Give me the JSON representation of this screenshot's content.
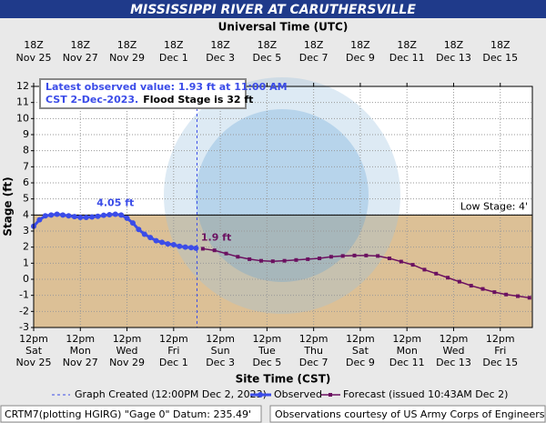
{
  "chart_data": {
    "type": "line",
    "title": "MISSISSIPPI RIVER AT CARUTHERSVILLE",
    "top_axis_label": "Universal Time (UTC)",
    "xlabel": "Site Time (CST)",
    "ylabel": "Stage (ft)",
    "xlim": [
      "Nov 25 12:00",
      "Dec 16 21:00"
    ],
    "ylim": [
      -3,
      12
    ],
    "yticks": [
      -3,
      -2,
      -1,
      0,
      1,
      2,
      3,
      4,
      5,
      6,
      7,
      8,
      9,
      10,
      11,
      12
    ],
    "xticks": [
      {
        "value": "Nov 25 12:00",
        "label": [
          "12pm",
          "Sat",
          "Nov 25"
        ]
      },
      {
        "value": "Nov 27 12:00",
        "label": [
          "12pm",
          "Mon",
          "Nov 27"
        ]
      },
      {
        "value": "Nov 29 12:00",
        "label": [
          "12pm",
          "Wed",
          "Nov 29"
        ]
      },
      {
        "value": "Dec 1 12:00",
        "label": [
          "12pm",
          "Fri",
          "Dec 1"
        ]
      },
      {
        "value": "Dec 3 12:00",
        "label": [
          "12pm",
          "Sun",
          "Dec 3"
        ]
      },
      {
        "value": "Dec 5 12:00",
        "label": [
          "12pm",
          "Tue",
          "Dec 5"
        ]
      },
      {
        "value": "Dec 7 12:00",
        "label": [
          "12pm",
          "Thu",
          "Dec 7"
        ]
      },
      {
        "value": "Dec 9 12:00",
        "label": [
          "12pm",
          "Sat",
          "Dec 9"
        ]
      },
      {
        "value": "Dec 11 12:00",
        "label": [
          "12pm",
          "Mon",
          "Dec 11"
        ]
      },
      {
        "value": "Dec 13 12:00",
        "label": [
          "12pm",
          "Wed",
          "Dec 13"
        ]
      },
      {
        "value": "Dec 15 12:00",
        "label": [
          "12pm",
          "Fri",
          "Dec 15"
        ]
      }
    ],
    "x2ticks": [
      {
        "value": "Nov 25 12:00",
        "label": [
          "18Z",
          "Nov 25"
        ]
      },
      {
        "value": "Nov 27 12:00",
        "label": [
          "18Z",
          "Nov 27"
        ]
      },
      {
        "value": "Nov 29 12:00",
        "label": [
          "18Z",
          "Nov 29"
        ]
      },
      {
        "value": "Dec 1 12:00",
        "label": [
          "18Z",
          "Dec 1"
        ]
      },
      {
        "value": "Dec 3 12:00",
        "label": [
          "18Z",
          "Dec 3"
        ]
      },
      {
        "value": "Dec 5 12:00",
        "label": [
          "18Z",
          "Dec 5"
        ]
      },
      {
        "value": "Dec 7 12:00",
        "label": [
          "18Z",
          "Dec 7"
        ]
      },
      {
        "value": "Dec 9 12:00",
        "label": [
          "18Z",
          "Dec 9"
        ]
      },
      {
        "value": "Dec 11 12:00",
        "label": [
          "18Z",
          "Dec 11"
        ]
      },
      {
        "value": "Dec 13 12:00",
        "label": [
          "18Z",
          "Dec 13"
        ]
      },
      {
        "value": "Dec 15 12:00",
        "label": [
          "18Z",
          "Dec 15"
        ]
      }
    ],
    "grid": true,
    "low_stage": 4,
    "low_stage_label": "Low Stage: 4'",
    "low_stage_color": "#d8b98b",
    "created_line": {
      "x": "Dec 2 12:00",
      "label": "Graph Created (12:00PM Dec 2, 2023)",
      "color": "#3b4ce8"
    },
    "info_box": [
      "Latest observed value: 1.93 ft at 11:00 AM",
      "CST 2-Dec-2023.",
      "Flood Stage is 32 ft"
    ],
    "annotations": [
      "4.05 ft",
      "1.9 ft"
    ],
    "series": [
      {
        "name": "Observed",
        "color": "#3b4ce8",
        "marker": "circle",
        "x": [
          "Nov 25 12:00",
          "Nov 25 18:00",
          "Nov 26 00:00",
          "Nov 26 06:00",
          "Nov 26 12:00",
          "Nov 26 18:00",
          "Nov 27 00:00",
          "Nov 27 06:00",
          "Nov 27 12:00",
          "Nov 27 18:00",
          "Nov 28 00:00",
          "Nov 28 06:00",
          "Nov 28 12:00",
          "Nov 28 18:00",
          "Nov 29 00:00",
          "Nov 29 06:00",
          "Nov 29 12:00",
          "Nov 29 18:00",
          "Nov 30 00:00",
          "Nov 30 06:00",
          "Nov 30 12:00",
          "Nov 30 18:00",
          "Dec 1 00:00",
          "Dec 1 06:00",
          "Dec 1 12:00",
          "Dec 1 18:00",
          "Dec 2 00:00",
          "Dec 2 06:00",
          "Dec 2 11:00"
        ],
        "values": [
          3.3,
          3.7,
          3.95,
          4.0,
          4.05,
          4.0,
          3.95,
          3.9,
          3.85,
          3.85,
          3.88,
          3.92,
          3.98,
          4.02,
          4.05,
          4.0,
          3.8,
          3.5,
          3.1,
          2.8,
          2.6,
          2.4,
          2.3,
          2.2,
          2.15,
          2.05,
          2.0,
          1.97,
          1.93
        ]
      },
      {
        "name": "Forecast (issued 10:43AM Dec 2)",
        "color": "#6b1060",
        "marker": "square",
        "x": [
          "Dec 2 18:00",
          "Dec 3 06:00",
          "Dec 3 18:00",
          "Dec 4 06:00",
          "Dec 4 18:00",
          "Dec 5 06:00",
          "Dec 5 18:00",
          "Dec 6 06:00",
          "Dec 6 18:00",
          "Dec 7 06:00",
          "Dec 7 18:00",
          "Dec 8 06:00",
          "Dec 8 18:00",
          "Dec 9 06:00",
          "Dec 9 18:00",
          "Dec 10 06:00",
          "Dec 10 18:00",
          "Dec 11 06:00",
          "Dec 11 18:00",
          "Dec 12 06:00",
          "Dec 12 18:00",
          "Dec 13 06:00",
          "Dec 13 18:00",
          "Dec 14 06:00",
          "Dec 14 18:00",
          "Dec 15 06:00",
          "Dec 15 18:00",
          "Dec 16 06:00",
          "Dec 16 18:00"
        ],
        "values": [
          1.9,
          1.8,
          1.6,
          1.4,
          1.25,
          1.15,
          1.12,
          1.15,
          1.2,
          1.25,
          1.3,
          1.4,
          1.45,
          1.48,
          1.48,
          1.45,
          1.3,
          1.1,
          0.9,
          0.6,
          0.35,
          0.1,
          -0.15,
          -0.4,
          -0.6,
          -0.8,
          -0.95,
          -1.05,
          -1.15
        ]
      }
    ]
  },
  "footer": [
    "CRTM7(plotting HGIRG) \"Gage 0\" Datum: 235.49'",
    "Observations courtesy of US Army Corps of Engineers"
  ]
}
